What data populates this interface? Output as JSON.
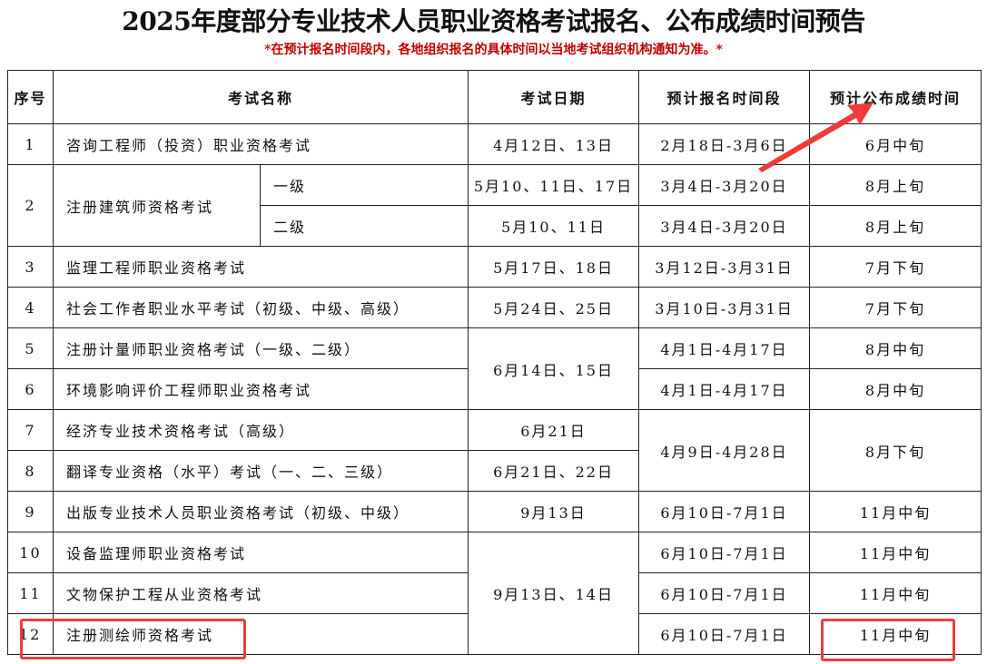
{
  "title": "2025年度部分专业技术人员职业资格考试报名、公布成绩时间预告",
  "subtitle": "*在预计报名时间段内，各地组织报名的具体时间以当地考试组织机构通知为准。*",
  "headers": {
    "no": "序号",
    "name": "考试名称",
    "date": "考试日期",
    "reg": "预计报名时间段",
    "result": "预计公布成绩时间"
  },
  "rows": [
    {
      "no": "1",
      "name": "咨询工程师（投资）职业资格考试",
      "date": "4月12日、13日",
      "reg": "2月18日-3月6日",
      "result": "6月中旬"
    },
    {
      "no": "2",
      "name": "注册建筑师资格考试",
      "sub": "一级",
      "date": "5月10、11日、17日",
      "reg": "3月4日-3月20日",
      "result": "8月上旬"
    },
    {
      "sub": "二级",
      "date": "5月10、11日",
      "reg": "3月4日-3月20日",
      "result": "8月上旬"
    },
    {
      "no": "3",
      "name": "监理工程师职业资格考试",
      "date": "5月17日、18日",
      "reg": "3月12日-3月31日",
      "result": "7月下旬"
    },
    {
      "no": "4",
      "name": "社会工作者职业水平考试（初级、中级、高级）",
      "date": "5月24日、25日",
      "reg": "3月10日-3月31日",
      "result": "7月下旬"
    },
    {
      "no": "5",
      "name": "注册计量师职业资格考试（一级、二级）",
      "date": "6月14日、15日",
      "reg": "4月1日-4月17日",
      "result": "8月中旬"
    },
    {
      "no": "6",
      "name": "环境影响评价工程师职业资格考试",
      "reg": "4月1日-4月17日",
      "result": "8月中旬"
    },
    {
      "no": "7",
      "name": "经济专业技术资格考试（高级）",
      "date": "6月21日",
      "reg": "4月9日-4月28日",
      "result": "8月下旬"
    },
    {
      "no": "8",
      "name": "翻译专业资格（水平）考试（一、二、三级）",
      "date": "6月21日、22日"
    },
    {
      "no": "9",
      "name": "出版专业技术人员职业资格考试（初级、中级）",
      "date": "9月13日",
      "reg": "6月10日-7月1日",
      "result": "11月中旬"
    },
    {
      "no": "10",
      "name": "设备监理师职业资格考试",
      "date": "9月13日、14日",
      "reg": "6月10日-7月1日",
      "result": "11月中旬"
    },
    {
      "no": "11",
      "name": "文物保护工程从业资格考试",
      "reg": "6月10日-7月1日",
      "result": "11月中旬"
    },
    {
      "no": "12",
      "name": "注册测绘师资格考试",
      "reg": "6月10日-7月1日",
      "result": "11月中旬"
    }
  ],
  "colors": {
    "highlight": "#ef3b3b",
    "subtitle": "#c00000"
  }
}
